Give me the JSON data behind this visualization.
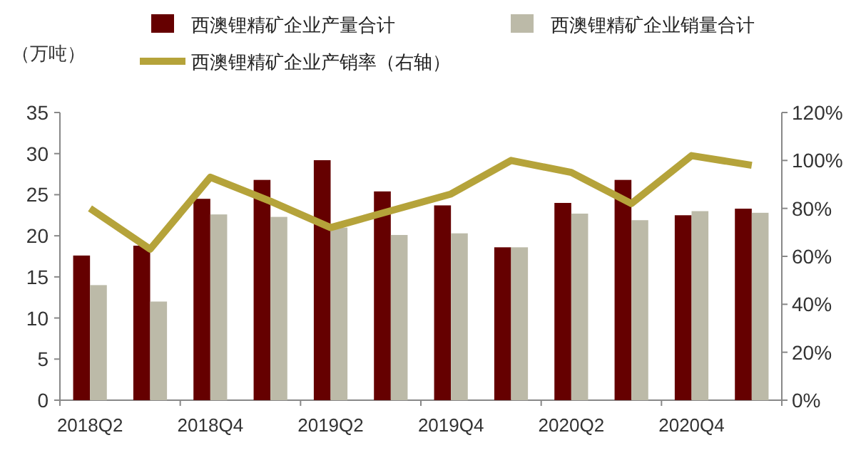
{
  "chart_data": {
    "type": "bar",
    "ylabel": "（万吨）",
    "categories": [
      "2018Q2",
      null,
      "2018Q4",
      null,
      "2019Q2",
      null,
      "2019Q4",
      null,
      "2020Q2",
      null,
      "2020Q4",
      null
    ],
    "series": [
      {
        "name": "西澳锂精矿企业产量合计",
        "color": "#650000",
        "values": [
          17.6,
          18.8,
          24.5,
          26.8,
          29.2,
          25.4,
          23.7,
          18.6,
          24.0,
          26.8,
          22.5,
          23.3
        ]
      },
      {
        "name": "西澳锂精矿企业销量合计",
        "color": "#bcbaa8",
        "values": [
          14.0,
          12.0,
          22.6,
          22.3,
          21.0,
          20.1,
          20.3,
          18.6,
          22.7,
          21.9,
          23.0,
          22.8
        ]
      },
      {
        "name": "西澳锂精矿企业产销率（右轴）",
        "type": "line",
        "axis": "y2",
        "color": "#b5a33a",
        "values": [
          80,
          63,
          93,
          83,
          72,
          79,
          86,
          100,
          95,
          82,
          102,
          98
        ]
      }
    ],
    "ylim": [
      0,
      35
    ],
    "yticks": [
      0,
      5,
      10,
      15,
      20,
      25,
      30,
      35
    ],
    "y2lim": [
      0,
      120
    ],
    "y2ticks": [
      {
        "value": 0,
        "label": "0%"
      },
      {
        "value": 20,
        "label": "20%"
      },
      {
        "value": 40,
        "label": "40%"
      },
      {
        "value": 60,
        "label": "60%"
      },
      {
        "value": 80,
        "label": "80%"
      },
      {
        "value": 100,
        "label": "100%"
      },
      {
        "value": 120,
        "label": "120%"
      }
    ],
    "legend": "top",
    "grid": false
  }
}
